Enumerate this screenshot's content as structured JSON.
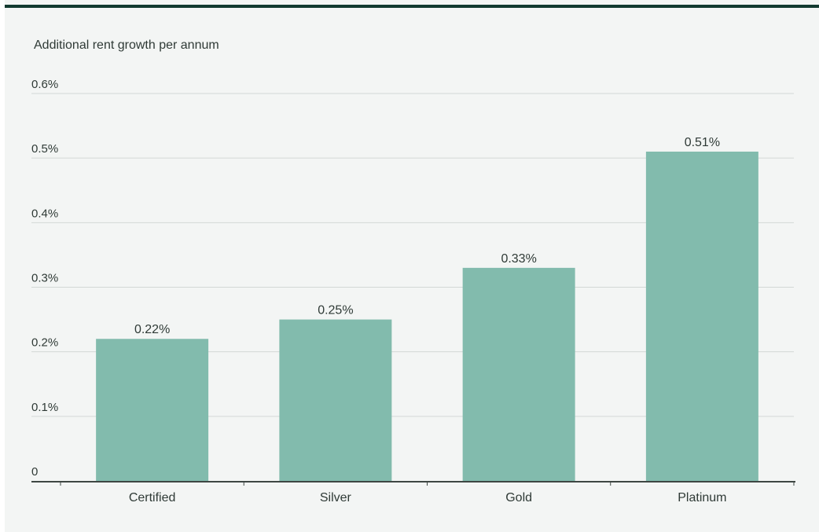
{
  "chart_data": {
    "type": "bar",
    "title": "",
    "ylabel": "Additional rent growth per annum",
    "xlabel": "",
    "categories": [
      "Certified",
      "Silver",
      "Gold",
      "Platinum"
    ],
    "values": [
      0.22,
      0.25,
      0.33,
      0.51
    ],
    "data_labels": [
      "0.22%",
      "0.25%",
      "0.33%",
      "0.51%"
    ],
    "ylim": [
      0,
      0.6
    ],
    "yticks": [
      0,
      0.1,
      0.2,
      0.3,
      0.4,
      0.5,
      0.6
    ],
    "ytick_labels": [
      "0",
      "0.1%",
      "0.2%",
      "0.3%",
      "0.4%",
      "0.5%",
      "0.6%"
    ],
    "grid": true,
    "legend": "none",
    "colors": {
      "bar": "#82bbad",
      "grid": "#d3d8d6",
      "axis": "#3e4743",
      "text": "#2f3a36",
      "header_rule": "#123a30",
      "background": "#f3f5f4"
    }
  }
}
